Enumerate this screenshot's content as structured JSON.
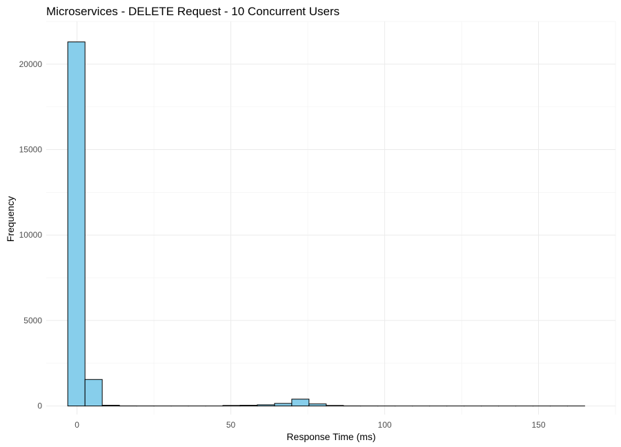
{
  "chart_data": {
    "type": "bar",
    "title": "Microservices - DELETE Request - 10 Concurrent Users",
    "xlabel": "Response Time (ms)",
    "ylabel": "Frequency",
    "xlim": [
      -10,
      175
    ],
    "ylim": [
      -500,
      22500
    ],
    "x_ticks": [
      0,
      50,
      100,
      150
    ],
    "y_ticks": [
      0,
      5000,
      10000,
      15000,
      20000
    ],
    "x_tick_labels": [
      "0",
      "50",
      "100",
      "150"
    ],
    "y_tick_labels": [
      "0",
      "5000",
      "10000",
      "15000",
      "20000"
    ],
    "bin_width": 5.6,
    "bin_start": -3.0,
    "values": [
      21300,
      1550,
      40,
      5,
      3,
      2,
      2,
      2,
      2,
      30,
      40,
      70,
      150,
      400,
      120,
      30,
      5,
      3,
      2,
      1,
      1,
      1,
      1,
      1,
      1,
      1,
      1,
      1,
      1,
      1
    ],
    "bar_fill": "#87ceeb",
    "bar_stroke": "#000000",
    "grid": true,
    "legend": "none"
  }
}
